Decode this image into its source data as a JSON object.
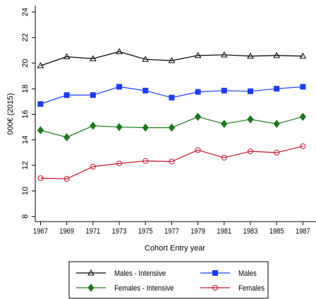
{
  "chart_data": {
    "type": "line",
    "x_label": "Cohort Entry year",
    "y_label": "000€ (2015)",
    "x": [
      1967,
      1969,
      1971,
      1973,
      1975,
      1977,
      1979,
      1981,
      1983,
      1985,
      1987
    ],
    "xlim": [
      1966.6,
      1988
    ],
    "xticks": [
      1967,
      1969,
      1971,
      1973,
      1975,
      1977,
      1979,
      1981,
      1983,
      1985,
      1987
    ],
    "ylim": [
      7.6,
      24.5
    ],
    "yticks": [
      8,
      10,
      12,
      14,
      16,
      18,
      20,
      22,
      24
    ],
    "series": [
      {
        "name": "Males - Intensive",
        "color": "#000000",
        "marker": "triangle",
        "values": [
          19.8,
          20.5,
          20.35,
          20.9,
          20.3,
          20.2,
          20.6,
          20.65,
          20.55,
          20.6,
          20.55
        ]
      },
      {
        "name": "Males",
        "color": "#1a3cff",
        "marker": "square",
        "values": [
          16.8,
          17.5,
          17.5,
          18.15,
          17.85,
          17.3,
          17.75,
          17.85,
          17.8,
          18.0,
          18.15
        ]
      },
      {
        "name": "Females - Intensive",
        "color": "#1a7a1a",
        "marker": "diamond",
        "values": [
          14.75,
          14.2,
          15.1,
          15.0,
          14.95,
          14.95,
          15.8,
          15.25,
          15.6,
          15.25,
          15.8
        ]
      },
      {
        "name": "Females",
        "color": "#c8102e",
        "marker": "circle",
        "values": [
          11.0,
          10.95,
          11.9,
          12.15,
          12.35,
          12.3,
          13.2,
          12.6,
          13.1,
          13.0,
          13.5
        ]
      }
    ]
  }
}
